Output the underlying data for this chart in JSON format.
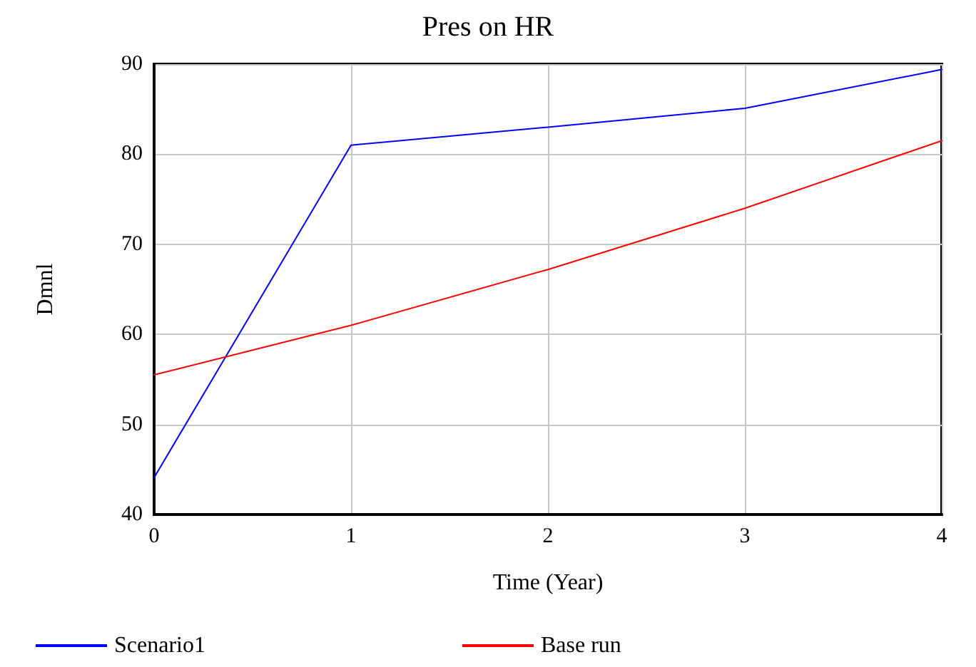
{
  "chart_data": {
    "type": "line",
    "title": "Pres on HR",
    "xlabel": "Time (Year)",
    "ylabel": "Dmnl",
    "x": [
      0,
      1,
      2,
      3,
      4
    ],
    "series": [
      {
        "name": "Scenario1",
        "color": "#0000ff",
        "values": [
          44.1,
          81.0,
          83.0,
          85.1,
          89.4
        ]
      },
      {
        "name": "Base run",
        "color": "#ff0000",
        "values": [
          55.5,
          61.0,
          67.2,
          74.0,
          81.5
        ]
      }
    ],
    "xlim": [
      0,
      4
    ],
    "xticks": [
      0,
      1,
      2,
      3,
      4
    ],
    "ylim": [
      40,
      90
    ],
    "yticks": [
      40,
      50,
      60,
      70,
      80,
      90
    ],
    "grid": true,
    "legend": "bottom",
    "marker": "none",
    "line_style": "solid"
  }
}
